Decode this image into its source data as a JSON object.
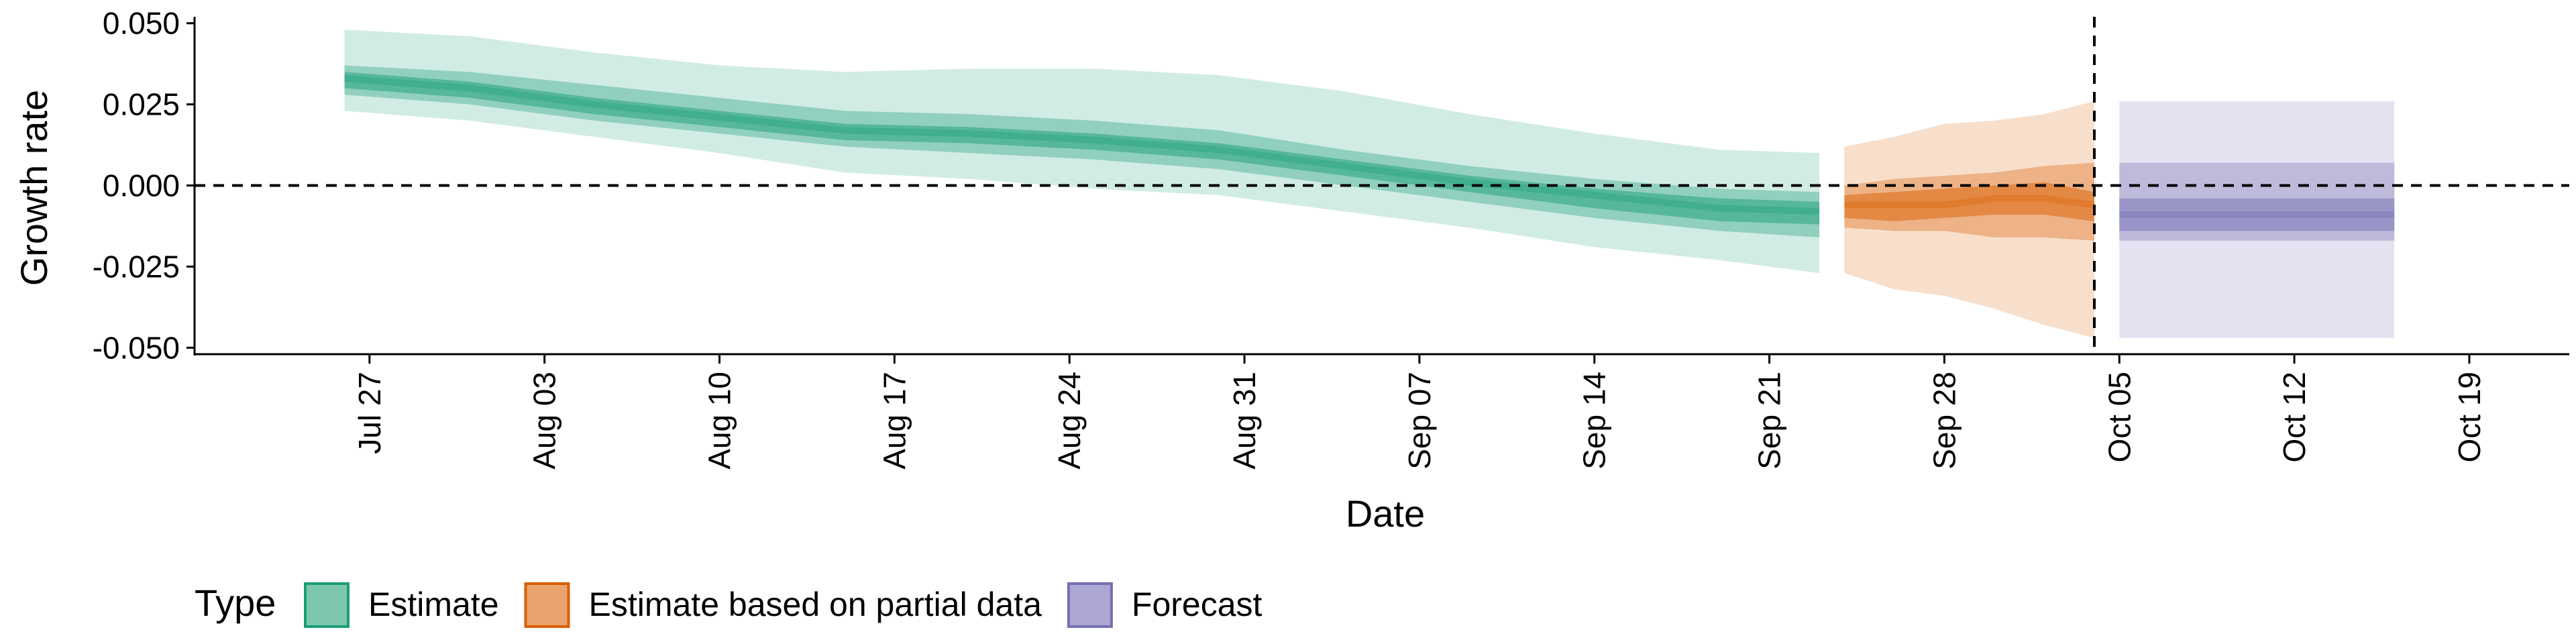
{
  "chart_data": {
    "type": "area",
    "xlabel": "Date",
    "ylabel": "Growth rate",
    "ylim": [
      -0.052,
      0.052
    ],
    "xlim": [
      "2020-07-20",
      "2020-10-23"
    ],
    "y_ticks": [
      "-0.050",
      "-0.025",
      "0.000",
      "0.025",
      "0.050"
    ],
    "y_tick_values": [
      -0.05,
      -0.025,
      0.0,
      0.025,
      0.05
    ],
    "x_ticks": [
      "Jul 27",
      "Aug 03",
      "Aug 10",
      "Aug 17",
      "Aug 24",
      "Aug 31",
      "Sep 07",
      "Sep 14",
      "Sep 21",
      "Sep 28",
      "Oct 05",
      "Oct 12",
      "Oct 19"
    ],
    "x_tick_dates": [
      "2020-07-27",
      "2020-08-03",
      "2020-08-10",
      "2020-08-17",
      "2020-08-24",
      "2020-08-31",
      "2020-09-07",
      "2020-09-14",
      "2020-09-21",
      "2020-09-28",
      "2020-10-05",
      "2020-10-12",
      "2020-10-19"
    ],
    "reference_lines": {
      "horizontal_y": 0.0,
      "vertical_date": "2020-10-04"
    },
    "legend": {
      "title": "Type",
      "position": "bottom-left",
      "entries": [
        {
          "label": "Estimate",
          "fill": "#7CC6AE",
          "border": "#1B9E77"
        },
        {
          "label": "Estimate based on partial data",
          "fill": "#EBA36E",
          "border": "#D95F02"
        },
        {
          "label": "Forecast",
          "fill": "#ACA8D3",
          "border": "#7570B3"
        }
      ]
    },
    "series": [
      {
        "name": "Estimate",
        "color": "#1B9E77",
        "x": [
          "2020-07-26",
          "2020-07-31",
          "2020-08-05",
          "2020-08-10",
          "2020-08-15",
          "2020-08-20",
          "2020-08-25",
          "2020-08-30",
          "2020-09-04",
          "2020-09-09",
          "2020-09-14",
          "2020-09-19",
          "2020-09-23"
        ],
        "median": [
          0.033,
          0.03,
          0.025,
          0.021,
          0.017,
          0.016,
          0.014,
          0.011,
          0.006,
          0.001,
          -0.003,
          -0.007,
          -0.008
        ],
        "inner_lower": [
          0.03,
          0.027,
          0.022,
          0.018,
          0.014,
          0.013,
          0.011,
          0.008,
          0.003,
          -0.002,
          -0.007,
          -0.011,
          -0.012
        ],
        "inner_upper": [
          0.035,
          0.032,
          0.027,
          0.023,
          0.019,
          0.018,
          0.016,
          0.013,
          0.008,
          0.003,
          -0.001,
          -0.004,
          -0.005
        ],
        "mid_lower": [
          0.028,
          0.025,
          0.02,
          0.016,
          0.012,
          0.01,
          0.008,
          0.005,
          0.0,
          -0.005,
          -0.01,
          -0.014,
          -0.016
        ],
        "mid_upper": [
          0.037,
          0.035,
          0.031,
          0.027,
          0.023,
          0.022,
          0.02,
          0.017,
          0.011,
          0.006,
          0.002,
          -0.001,
          -0.002
        ],
        "outer_lower": [
          0.023,
          0.02,
          0.015,
          0.01,
          0.004,
          0.002,
          -0.001,
          -0.003,
          -0.008,
          -0.013,
          -0.019,
          -0.023,
          -0.027
        ],
        "outer_upper": [
          0.048,
          0.046,
          0.041,
          0.037,
          0.035,
          0.036,
          0.036,
          0.034,
          0.029,
          0.022,
          0.016,
          0.011,
          0.01
        ]
      },
      {
        "name": "Estimate based on partial data",
        "color": "#D95F02",
        "x": [
          "2020-09-24",
          "2020-09-26",
          "2020-09-28",
          "2020-09-30",
          "2020-10-02",
          "2020-10-04"
        ],
        "median": [
          -0.006,
          -0.006,
          -0.006,
          -0.004,
          -0.004,
          -0.006
        ],
        "inner_lower": [
          -0.01,
          -0.011,
          -0.01,
          -0.009,
          -0.009,
          -0.011
        ],
        "inner_upper": [
          -0.003,
          -0.002,
          -0.001,
          0.0,
          0.001,
          -0.002
        ],
        "mid_lower": [
          -0.013,
          -0.014,
          -0.014,
          -0.016,
          -0.016,
          -0.017
        ],
        "mid_upper": [
          0.0,
          0.002,
          0.003,
          0.004,
          0.006,
          0.007
        ],
        "outer_lower": [
          -0.027,
          -0.032,
          -0.034,
          -0.038,
          -0.043,
          -0.047
        ],
        "outer_upper": [
          0.012,
          0.015,
          0.019,
          0.02,
          0.022,
          0.026
        ]
      },
      {
        "name": "Forecast",
        "color": "#7570B3",
        "x": [
          "2020-10-05",
          "2020-10-16"
        ],
        "median": [
          -0.009,
          -0.009
        ],
        "inner_lower": [
          -0.014,
          -0.014
        ],
        "inner_upper": [
          -0.004,
          -0.004
        ],
        "mid_lower": [
          -0.017,
          -0.017
        ],
        "mid_upper": [
          0.007,
          0.007
        ],
        "outer_lower": [
          -0.047,
          -0.047
        ],
        "outer_upper": [
          0.026,
          0.026
        ]
      }
    ]
  }
}
